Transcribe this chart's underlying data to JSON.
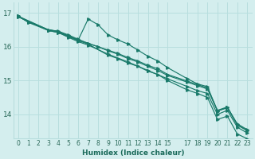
{
  "xlabel": "Humidex (Indice chaleur)",
  "bg_color": "#d4eeee",
  "grid_color": "#b8dede",
  "line_color": "#1a7a6a",
  "xlim": [
    -0.5,
    23.5
  ],
  "ylim": [
    13.3,
    17.3
  ],
  "lines": [
    {
      "x": [
        0,
        1,
        3,
        4,
        5,
        6,
        7,
        8,
        9,
        10,
        11,
        12,
        13,
        14,
        15,
        17,
        18,
        19,
        20,
        21,
        22,
        23
      ],
      "y": [
        16.9,
        16.72,
        16.5,
        16.46,
        16.35,
        16.22,
        16.1,
        16.0,
        15.88,
        15.78,
        15.65,
        15.55,
        15.42,
        15.3,
        15.15,
        14.95,
        14.85,
        14.75,
        14.1,
        14.2,
        13.72,
        13.55
      ]
    },
    {
      "x": [
        0,
        3,
        4,
        5,
        6,
        7,
        8,
        9,
        10,
        11,
        12,
        13,
        14,
        15,
        17,
        18,
        19,
        20,
        21,
        22,
        23
      ],
      "y": [
        16.9,
        16.5,
        16.45,
        16.32,
        16.2,
        16.82,
        16.65,
        16.35,
        16.2,
        16.08,
        15.9,
        15.72,
        15.58,
        15.38,
        15.05,
        14.9,
        14.82,
        14.1,
        14.2,
        13.68,
        13.52
      ]
    },
    {
      "x": [
        0,
        3,
        4,
        5,
        6,
        7,
        8,
        9,
        10,
        11,
        12,
        13,
        14,
        15,
        17,
        18,
        19,
        20,
        21,
        22,
        23
      ],
      "y": [
        16.88,
        16.5,
        16.45,
        16.32,
        16.2,
        16.1,
        16.0,
        15.9,
        15.8,
        15.68,
        15.58,
        15.45,
        15.35,
        15.18,
        14.98,
        14.88,
        14.78,
        14.12,
        14.22,
        13.7,
        13.52
      ]
    },
    {
      "x": [
        0,
        3,
        4,
        5,
        6,
        7,
        9,
        11,
        13,
        15,
        17,
        18,
        19,
        20,
        21,
        22,
        23
      ],
      "y": [
        16.88,
        16.48,
        16.42,
        16.28,
        16.15,
        16.05,
        15.78,
        15.55,
        15.3,
        15.05,
        14.82,
        14.7,
        14.62,
        14.0,
        14.12,
        13.62,
        13.45
      ]
    },
    {
      "x": [
        0,
        1,
        3,
        4,
        5,
        6,
        7,
        9,
        10,
        11,
        12,
        13,
        14,
        15,
        17,
        18,
        19,
        20,
        21,
        22,
        23
      ],
      "y": [
        16.9,
        16.72,
        16.48,
        16.42,
        16.3,
        16.18,
        16.08,
        15.75,
        15.65,
        15.52,
        15.42,
        15.28,
        15.18,
        15.0,
        14.72,
        14.62,
        14.5,
        13.85,
        13.95,
        13.42,
        13.28
      ]
    }
  ],
  "xticks": [
    0,
    1,
    2,
    3,
    4,
    5,
    6,
    7,
    8,
    9,
    10,
    11,
    12,
    13,
    14,
    15,
    17,
    18,
    19,
    20,
    21,
    22,
    23
  ],
  "yticks": [
    14,
    15,
    16,
    17
  ]
}
